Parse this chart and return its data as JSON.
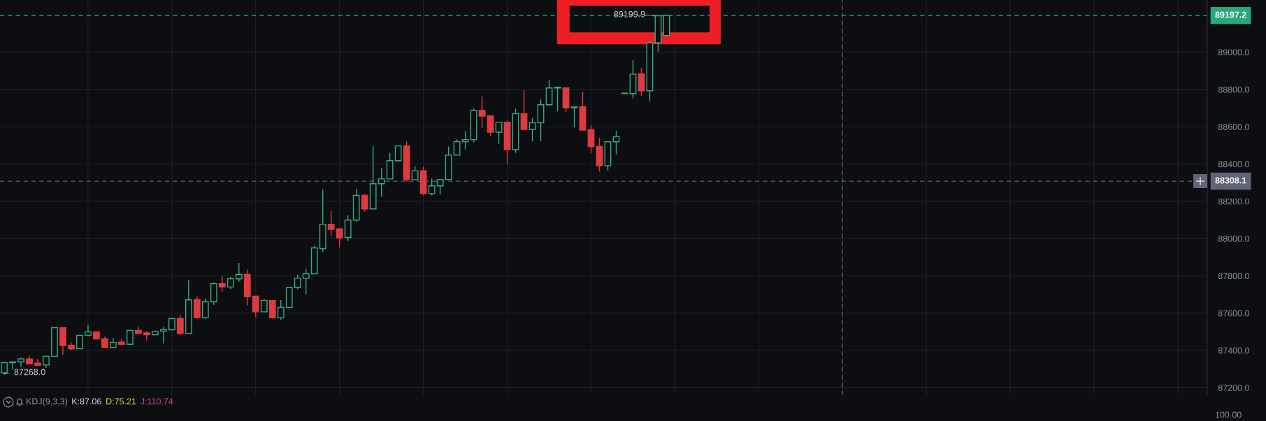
{
  "chart_data": [
    {
      "type": "candlestick",
      "categories": [
        null,
        null,
        null,
        null,
        null,
        null,
        null,
        null,
        null,
        null,
        null,
        null,
        null,
        null,
        null,
        null,
        null,
        null,
        null,
        null,
        null,
        null,
        null,
        null,
        null,
        null,
        null,
        null,
        null,
        null,
        null,
        null,
        null,
        null,
        null,
        null,
        null,
        null,
        null,
        null,
        null,
        null,
        null,
        null,
        null,
        null,
        null,
        null,
        null,
        null,
        null,
        null,
        null,
        null,
        null,
        null,
        null,
        null,
        null,
        null,
        null,
        null,
        null,
        null,
        null,
        null,
        null,
        null,
        null,
        null,
        null,
        null,
        null,
        null,
        null,
        null,
        null,
        null,
        null,
        null,
        null,
        null,
        null,
        null,
        null,
        null,
        null,
        null,
        null,
        null,
        null,
        null,
        null,
        null,
        null,
        null,
        null,
        null,
        null,
        null,
        null,
        null,
        null,
        null,
        null,
        null,
        null,
        null,
        null,
        null,
        null,
        null,
        null,
        null,
        null,
        null,
        null,
        null,
        null,
        null,
        null,
        null,
        null,
        null,
        null,
        null,
        null,
        null,
        null,
        null,
        null,
        null,
        null,
        null,
        null,
        null,
        null,
        null,
        null,
        null,
        null,
        null,
        null,
        null
      ],
      "ohlc": [
        [
          87280,
          87340,
          87268.0,
          87334
        ],
        [
          87334,
          87341,
          87297,
          87338
        ],
        [
          87338,
          87362,
          87312,
          87354
        ],
        [
          87354,
          87372,
          87326,
          87328
        ],
        [
          87332,
          87354,
          87316,
          87320
        ],
        [
          87322,
          87372,
          87307,
          87368
        ],
        [
          87368,
          87522,
          87366,
          87522
        ],
        [
          87522,
          87524,
          87378,
          87426
        ],
        [
          87428,
          87443,
          87401,
          87408
        ],
        [
          87409,
          87482,
          87408,
          87481
        ],
        [
          87481,
          87537,
          87479,
          87499
        ],
        [
          87499,
          87503,
          87459,
          87462
        ],
        [
          87462,
          87474,
          87413,
          87416
        ],
        [
          87416,
          87466,
          87413,
          87443
        ],
        [
          87444,
          87462,
          87426,
          87433
        ],
        [
          87433,
          87509,
          87428,
          87507
        ],
        [
          87507,
          87528,
          87488,
          87491
        ],
        [
          87494,
          87503,
          87453,
          87484
        ],
        [
          87484,
          87507,
          87481,
          87503
        ],
        [
          87503,
          87528,
          87437,
          87511
        ],
        [
          87511,
          87571,
          87508,
          87571
        ],
        [
          87571,
          87591,
          87483,
          87491
        ],
        [
          87491,
          87776,
          87491,
          87671
        ],
        [
          87672,
          87691,
          87568,
          87576
        ],
        [
          87576,
          87679,
          87569,
          87661
        ],
        [
          87661,
          87766,
          87644,
          87758
        ],
        [
          87758,
          87800,
          87716,
          87740
        ],
        [
          87740,
          87794,
          87728,
          87785
        ],
        [
          87784,
          87869,
          87769,
          87807
        ],
        [
          87807,
          87834,
          87641,
          87688
        ],
        [
          87691,
          87691,
          87578,
          87607
        ],
        [
          87607,
          87675,
          87606,
          87668
        ],
        [
          87668,
          87668,
          87572,
          87575
        ],
        [
          87575,
          87670,
          87563,
          87631
        ],
        [
          87631,
          87737,
          87628,
          87737
        ],
        [
          87737,
          87806,
          87728,
          87787
        ],
        [
          87787,
          87837,
          87701,
          87811
        ],
        [
          87811,
          87962,
          87808,
          87950
        ],
        [
          87946,
          88263,
          87928,
          88077
        ],
        [
          88077,
          88147,
          88012,
          88049
        ],
        [
          88052,
          88052,
          87953,
          88003
        ],
        [
          88006,
          88124,
          87987,
          88099
        ],
        [
          88099,
          88266,
          88091,
          88231
        ],
        [
          88232,
          88238,
          88144,
          88159
        ],
        [
          88159,
          88497,
          88158,
          88294
        ],
        [
          88294,
          88378,
          88224,
          88320
        ],
        [
          88320,
          88458,
          88318,
          88418
        ],
        [
          88418,
          88501,
          88412,
          88497
        ],
        [
          88497,
          88521,
          88306,
          88316
        ],
        [
          88316,
          88388,
          88314,
          88364
        ],
        [
          88364,
          88387,
          88231,
          88241
        ],
        [
          88241,
          88322,
          88231,
          88283
        ],
        [
          88283,
          88318,
          88237,
          88317
        ],
        [
          88317,
          88494,
          88316,
          88448
        ],
        [
          88448,
          88532,
          88445,
          88520
        ],
        [
          88520,
          88576,
          88478,
          88531
        ],
        [
          88531,
          88699,
          88516,
          88688
        ],
        [
          88688,
          88762,
          88593,
          88657
        ],
        [
          88658,
          88663,
          88549,
          88571
        ],
        [
          88571,
          88624,
          88509,
          88624
        ],
        [
          88624,
          88634,
          88399,
          88477
        ],
        [
          88477,
          88697,
          88459,
          88670
        ],
        [
          88670,
          88797,
          88578,
          88586
        ],
        [
          88586,
          88647,
          88522,
          88621
        ],
        [
          88621,
          88747,
          88522,
          88718
        ],
        [
          88718,
          88853,
          88713,
          88808
        ],
        [
          88808,
          88816,
          88682,
          88812
        ],
        [
          88808,
          88811,
          88678,
          88701
        ],
        [
          88702,
          88708,
          88597,
          88706
        ],
        [
          88707,
          88787,
          88582,
          88582
        ],
        [
          88584,
          88607,
          88459,
          88494
        ],
        [
          88494,
          88541,
          88360,
          88391
        ],
        [
          88391,
          88519,
          88366,
          88519
        ],
        [
          88519,
          88578,
          88453,
          88546
        ],
        [
          88778,
          88780,
          88778,
          88780
        ],
        [
          88778,
          88956,
          88753,
          88882
        ],
        [
          88883,
          88916,
          88766,
          88793
        ],
        [
          88793,
          89060,
          88737,
          89050
        ],
        [
          89050,
          89199.9,
          89003,
          89195
        ],
        [
          89090,
          89199,
          89085,
          89197.2
        ],
        null,
        null,
        null,
        null,
        null,
        null,
        null,
        null,
        null,
        null,
        null,
        null,
        null,
        null,
        null,
        null,
        null,
        null,
        null,
        null,
        null,
        null,
        null,
        null,
        null,
        null,
        null,
        null,
        null,
        null,
        null,
        null,
        null,
        null,
        null,
        null,
        null,
        null,
        null,
        null,
        null,
        null,
        null,
        null,
        null,
        null,
        null,
        null,
        null,
        null,
        null,
        null,
        null,
        null,
        null,
        null,
        null,
        null,
        null,
        null,
        null,
        null,
        null,
        null
      ],
      "colors": [
        "#35ac84",
        "#35ac84",
        "#35ac84",
        "#dd3b40",
        "#dd3b40",
        "#35ac84",
        "#35ac84",
        "#dd3b40",
        "#dd3b40",
        "#35ac84",
        "#35ac84",
        "#dd3b40",
        "#dd3b40",
        "#35ac84",
        "#dd3b40",
        "#35ac84",
        "#dd3b40",
        "#dd3b40",
        "#35ac84",
        "#35ac84",
        "#35ac84",
        "#dd3b40",
        "#35ac84",
        "#dd3b40",
        "#35ac84",
        "#35ac84",
        "#dd3b40",
        "#35ac84",
        "#35ac84",
        "#dd3b40",
        "#dd3b40",
        "#35ac84",
        "#dd3b40",
        "#35ac84",
        "#35ac84",
        "#35ac84",
        "#35ac84",
        "#35ac84",
        "#35ac84",
        "#dd3b40",
        "#dd3b40",
        "#35ac84",
        "#35ac84",
        "#dd3b40",
        "#35ac84",
        "#35ac84",
        "#35ac84",
        "#35ac84",
        "#dd3b40",
        "#35ac84",
        "#dd3b40",
        "#35ac84",
        "#35ac84",
        "#35ac84",
        "#35ac84",
        "#35ac84",
        "#35ac84",
        "#dd3b40",
        "#dd3b40",
        "#35ac84",
        "#dd3b40",
        "#35ac84",
        "#dd3b40",
        "#35ac84",
        "#35ac84",
        "#35ac84",
        "#35ac84",
        "#dd3b40",
        "#35ac84",
        "#dd3b40",
        "#dd3b40",
        "#dd3b40",
        "#35ac84",
        "#35ac84",
        "#35ac84",
        "#35ac84",
        "#dd3b40",
        "#35ac84",
        "#35ac84",
        "#35ac84",
        null,
        null,
        null,
        null,
        null,
        null,
        null,
        null,
        null,
        null,
        null,
        null,
        null,
        null,
        null,
        null,
        null,
        null,
        null,
        null,
        null,
        null,
        null,
        null,
        null,
        null,
        null,
        null,
        null,
        null,
        null,
        null,
        null,
        null,
        null,
        null,
        null,
        null,
        null,
        null,
        null,
        null,
        null,
        null,
        null,
        null,
        null,
        null,
        null,
        null,
        null,
        null,
        null,
        null,
        null,
        null,
        null,
        null,
        null,
        null,
        null,
        null,
        null,
        null
      ],
      "ylim": [
        87160,
        89280
      ],
      "yticks": [
        {
          "value": 87200,
          "label": "87200.0"
        },
        {
          "value": 87400,
          "label": "87400.0"
        },
        {
          "value": 87600,
          "label": "87600.0"
        },
        {
          "value": 87800,
          "label": "87800.0"
        },
        {
          "value": 88000,
          "label": "88000.0"
        },
        {
          "value": 88200,
          "label": "88200.0"
        },
        {
          "value": 88400,
          "label": "88400.0"
        },
        {
          "value": 88600,
          "label": "88600.0"
        },
        {
          "value": 88800,
          "label": "88800.0"
        },
        {
          "value": 89000,
          "label": "89000.0"
        }
      ],
      "grid": true,
      "tick_labels": "y",
      "ref_lines": [
        {
          "axis": "y",
          "value": 89197.2,
          "label": "89197.2",
          "color": "#28a97c",
          "line_style": "dashed"
        },
        {
          "axis": "y",
          "value": 88308.1,
          "label": "88308.1",
          "color": "#5e6574",
          "line_style": "dashed"
        }
      ],
      "annotations": [
        {
          "text": "89199.9 →",
          "y": 89199.9
        },
        "← 87268.0"
      ]
    },
    {
      "type": "other",
      "title": "KDJ(9,3,3)",
      "series": [
        {
          "name": "K:87.06",
          "color": "#d6d8dc"
        },
        {
          "name": "D:75.21",
          "color": "#e3d43c"
        },
        {
          "name": "J:110.74",
          "color": "#c8479f"
        }
      ],
      "annotations": [
        "100.00"
      ]
    }
  ]
}
